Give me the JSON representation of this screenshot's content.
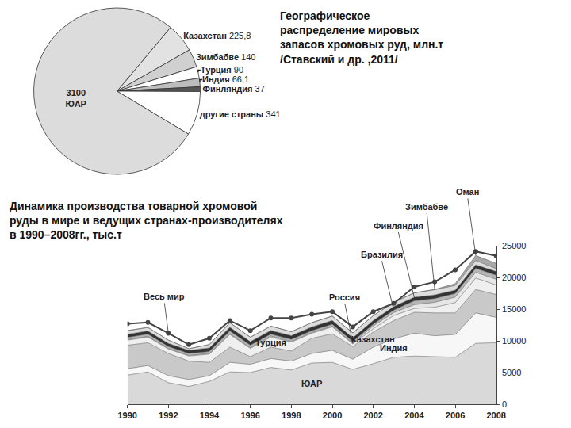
{
  "chart_data": [
    {
      "type": "pie",
      "title": [
        "Географическое",
        "распределение мировых",
        "запасов хромовых руд, млн.т",
        "/Ставский и др. ,2011/"
      ],
      "categories": [
        "Казахстан",
        "Зимбабве",
        "Турция",
        "Индия",
        "Финляндия",
        "другие страны",
        "ЮАР"
      ],
      "values": [
        225.8,
        140,
        90,
        66.1,
        37,
        341,
        3100
      ],
      "value_labels": [
        "225,8",
        "140",
        "90",
        "66,1",
        "37",
        "341",
        "3100"
      ],
      "colors": [
        "#e2e2e2",
        "#d0d0d0",
        "#ffffff",
        "#bdbdbd",
        "#555555",
        "#ffffff",
        "#dcdcdc"
      ],
      "data_labels": true
    },
    {
      "type": "area",
      "title": [
        "Динамика производства товарной хромовой",
        "руды в мире и ведущих странах-производителях",
        "в 1990–2008гг., тыс.т"
      ],
      "stacked": true,
      "x": [
        1990,
        1991,
        1992,
        1993,
        1994,
        1995,
        1996,
        1997,
        1998,
        1999,
        2000,
        2001,
        2002,
        2003,
        2004,
        2005,
        2006,
        2007,
        2008
      ],
      "xlim": [
        1990,
        2008
      ],
      "xticks": [
        1990,
        1992,
        1994,
        1996,
        1998,
        2000,
        2002,
        2004,
        2006,
        2008
      ],
      "ylim": [
        0,
        25000
      ],
      "yticks": [
        0,
        5000,
        10000,
        15000,
        20000,
        25000
      ],
      "grid": false,
      "series": [
        {
          "name": "ЮАР",
          "type": "area",
          "color": "#d9d9d9",
          "values": [
            4600,
            5100,
            3400,
            2800,
            3600,
            5100,
            5000,
            5800,
            5400,
            6500,
            6600,
            5500,
            6400,
            7400,
            7600,
            7500,
            7400,
            9600,
            9700
          ]
        },
        {
          "name": "Индия",
          "type": "area",
          "color": "#f7f7f7",
          "values": [
            1000,
            1000,
            1100,
            1100,
            900,
            1500,
            1300,
            1400,
            1400,
            1500,
            1900,
            1600,
            2600,
            2900,
            3600,
            3300,
            3600,
            4800,
            4000
          ]
        },
        {
          "name": "Казахстан",
          "type": "area",
          "color": "#c9c9c9",
          "values": [
            3700,
            3600,
            3500,
            2900,
            2100,
            2400,
            1200,
            1800,
            1600,
            2400,
            2600,
            2000,
            2400,
            2900,
            3300,
            3600,
            3400,
            3700,
            3600
          ]
        },
        {
          "name": "Турция",
          "type": "area",
          "color": "#efefef",
          "values": [
            800,
            900,
            700,
            800,
            1300,
            2000,
            1300,
            1600,
            1400,
            800,
            1100,
            400,
            500,
            800,
            600,
            900,
            1600,
            1800,
            1500
          ]
        },
        {
          "name": "Россия",
          "type": "area",
          "color": "#e6e6e6",
          "values": [
            100,
            100,
            100,
            100,
            100,
            100,
            100,
            150,
            100,
            100,
            120,
            100,
            450,
            450,
            600,
            770,
            900,
            900,
            900
          ]
        },
        {
          "name": "Бразилия",
          "type": "area",
          "color": "#b5b5b5",
          "values": [
            340,
            350,
            300,
            300,
            320,
            450,
            400,
            300,
            330,
            300,
            300,
            280,
            290,
            400,
            600,
            600,
            560,
            630,
            630
          ]
        },
        {
          "name": "Финляндия",
          "type": "area",
          "color": "#333333",
          "values": [
            500,
            500,
            500,
            500,
            570,
            600,
            570,
            590,
            590,
            600,
            590,
            580,
            570,
            550,
            580,
            570,
            550,
            560,
            610
          ]
        },
        {
          "name": "Зимбабве",
          "type": "area",
          "color": "#dddddd",
          "values": [
            570,
            560,
            510,
            250,
            520,
            700,
            700,
            670,
            610,
            650,
            670,
            780,
            750,
            670,
            670,
            820,
            710,
            670,
            440
          ]
        },
        {
          "name": "Оман",
          "type": "area",
          "color": "#a8a8a8",
          "values": [
            10,
            10,
            10,
            10,
            10,
            10,
            10,
            15,
            20,
            30,
            40,
            30,
            20,
            20,
            40,
            50,
            290,
            800,
            850
          ]
        },
        {
          "name": "Весь мир",
          "type": "line",
          "color": "#444444",
          "marker": "circle",
          "values": [
            12700,
            12900,
            11200,
            9400,
            10400,
            13200,
            11600,
            13600,
            13600,
            14200,
            14600,
            12200,
            14600,
            15900,
            18500,
            19300,
            21200,
            24100,
            23400
          ]
        }
      ]
    }
  ]
}
